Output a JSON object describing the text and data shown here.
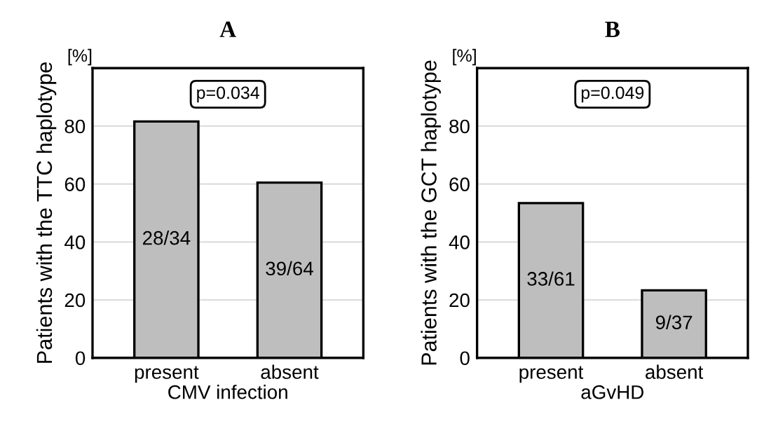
{
  "chart_data": [
    {
      "type": "bar",
      "title": "A",
      "xlabel": "CMV infection",
      "ylabel": "Patients with the TTC haplotype",
      "categories": [
        "present",
        "absent"
      ],
      "values": [
        81.6,
        60.5
      ],
      "value_labels": [
        "28/34",
        "39/64"
      ],
      "color": "#bebebe",
      "ylim": [
        0,
        100
      ],
      "yticks": [
        0,
        20,
        40,
        60,
        80
      ],
      "grid": "y",
      "annotations": [
        "[%]",
        "p=0.034"
      ]
    },
    {
      "type": "bar",
      "title": "B",
      "xlabel": "aGvHD",
      "ylabel": "Patients with the GCT haplotype",
      "categories": [
        "present",
        "absent"
      ],
      "values": [
        53.4,
        23.3
      ],
      "value_labels": [
        "33/61",
        "9/37"
      ],
      "color": "#bebebe",
      "ylim": [
        0,
        100
      ],
      "yticks": [
        0,
        20,
        40,
        60,
        80
      ],
      "grid": "y",
      "annotations": [
        "[%]",
        "p=0.049"
      ]
    }
  ]
}
